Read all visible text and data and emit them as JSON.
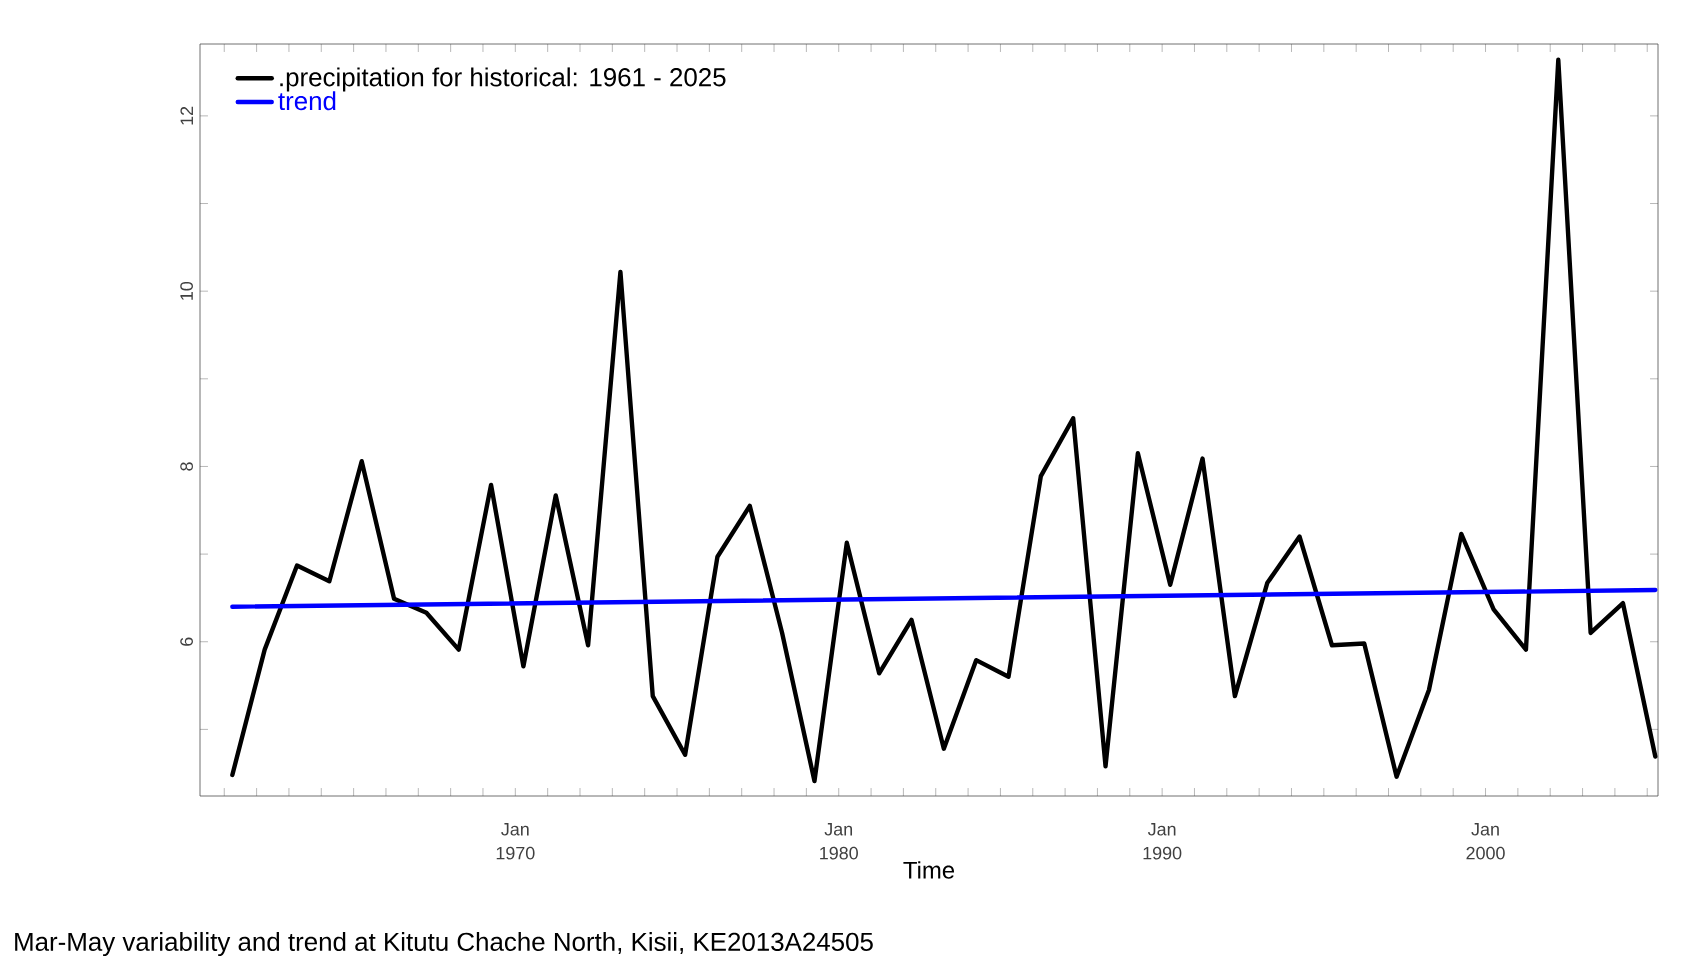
{
  "chart_data": {
    "type": "line",
    "title": "Mar-May variability and trend at Kitutu Chache North, Kisii, KE2013A24505",
    "xlabel": "Time",
    "x": [
      "1961-04",
      "1962-04",
      "1963-04",
      "1964-04",
      "1965-04",
      "1966-04",
      "1967-04",
      "1968-04",
      "1969-04",
      "1970-04",
      "1971-04",
      "1972-04",
      "1973-04",
      "1974-04",
      "1975-04",
      "1976-04",
      "1977-04",
      "1978-04",
      "1979-04",
      "1980-04",
      "1981-04",
      "1982-04",
      "1983-04",
      "1984-04",
      "1985-04",
      "1986-04",
      "1987-04",
      "1988-04",
      "1989-04",
      "1990-04",
      "1991-04",
      "1992-04",
      "1993-04",
      "1994-04",
      "1995-04",
      "1996-04",
      "1997-04",
      "1998-04",
      "1999-04",
      "2000-04",
      "2001-04",
      "2002-04",
      "2003-04",
      "2004-04",
      "2005-04"
    ],
    "series": [
      {
        "name": ".precipitation for historical: 1961 - 2025",
        "color": "#000000",
        "values": [
          4.48,
          5.91,
          6.87,
          6.69,
          8.06,
          6.49,
          6.33,
          5.91,
          7.79,
          5.72,
          7.67,
          5.96,
          10.22,
          5.38,
          4.71,
          6.97,
          7.55,
          6.1,
          4.41,
          7.13,
          5.64,
          6.25,
          4.78,
          5.79,
          5.6,
          7.89,
          8.55,
          4.58,
          8.15,
          6.65,
          8.09,
          5.38,
          6.67,
          7.2,
          5.96,
          5.98,
          4.46,
          5.45,
          7.23,
          6.37,
          5.91,
          12.64,
          6.1,
          6.44,
          4.69
        ]
      },
      {
        "name": "trend",
        "color": "#0000ff",
        "x": [
          "1961-04",
          "2005-04"
        ],
        "values": [
          6.4,
          6.59
        ]
      }
    ],
    "xlim": [
      "1960-04",
      "2005-05"
    ],
    "ylim": [
      4.24,
      12.82
    ],
    "xticks": [
      {
        "value": "1961-01",
        "label": null
      },
      {
        "value": "1962-01",
        "label": null
      },
      {
        "value": "1963-01",
        "label": null
      },
      {
        "value": "1964-01",
        "label": null
      },
      {
        "value": "1965-01",
        "label": null
      },
      {
        "value": "1966-01",
        "label": null
      },
      {
        "value": "1967-01",
        "label": null
      },
      {
        "value": "1968-01",
        "label": null
      },
      {
        "value": "1969-01",
        "label": null
      },
      {
        "value": "1970-01",
        "label": "Jan 1970"
      },
      {
        "value": "1971-01",
        "label": null
      },
      {
        "value": "1972-01",
        "label": null
      },
      {
        "value": "1973-01",
        "label": null
      },
      {
        "value": "1974-01",
        "label": null
      },
      {
        "value": "1975-01",
        "label": null
      },
      {
        "value": "1976-01",
        "label": null
      },
      {
        "value": "1977-01",
        "label": null
      },
      {
        "value": "1978-01",
        "label": null
      },
      {
        "value": "1979-01",
        "label": null
      },
      {
        "value": "1980-01",
        "label": "Jan 1980"
      },
      {
        "value": "1981-01",
        "label": null
      },
      {
        "value": "1982-01",
        "label": null
      },
      {
        "value": "1983-01",
        "label": null
      },
      {
        "value": "1984-01",
        "label": null
      },
      {
        "value": "1985-01",
        "label": null
      },
      {
        "value": "1986-01",
        "label": null
      },
      {
        "value": "1987-01",
        "label": null
      },
      {
        "value": "1988-01",
        "label": null
      },
      {
        "value": "1989-01",
        "label": null
      },
      {
        "value": "1990-01",
        "label": "Jan 1990"
      },
      {
        "value": "1991-01",
        "label": null
      },
      {
        "value": "1992-01",
        "label": null
      },
      {
        "value": "1993-01",
        "label": null
      },
      {
        "value": "1994-01",
        "label": null
      },
      {
        "value": "1995-01",
        "label": null
      },
      {
        "value": "1996-01",
        "label": null
      },
      {
        "value": "1997-01",
        "label": null
      },
      {
        "value": "1998-01",
        "label": null
      },
      {
        "value": "1999-01",
        "label": null
      },
      {
        "value": "2000-01",
        "label": "Jan 2000"
      },
      {
        "value": "2001-01",
        "label": null
      },
      {
        "value": "2002-01",
        "label": null
      },
      {
        "value": "2003-01",
        "label": null
      },
      {
        "value": "2004-01",
        "label": null
      },
      {
        "value": "2005-01",
        "label": null
      }
    ],
    "yticks": [
      {
        "value": 5,
        "label": null
      },
      6,
      {
        "value": 7,
        "label": null
      },
      8,
      {
        "value": 9,
        "label": null
      },
      10,
      {
        "value": 11,
        "label": null
      },
      12
    ],
    "grid": false,
    "legend": "top left",
    "marker": "none",
    "line_style": "solid"
  }
}
